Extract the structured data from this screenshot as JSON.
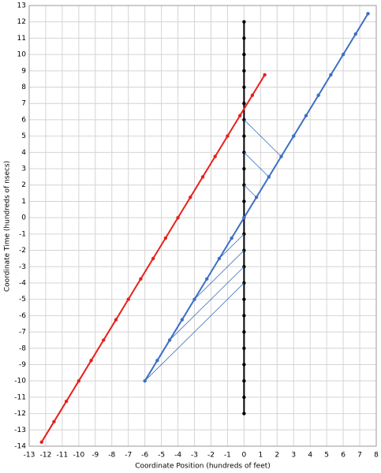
{
  "chart_data": {
    "type": "line",
    "x_label": "Coordinate Position (hundreds of feet)",
    "y_label": "Coordinate Time (hundreds of nsecs)",
    "xlim": [
      -13,
      8
    ],
    "ylim": [
      -14,
      13
    ],
    "xticks": [
      -13,
      -12,
      -11,
      -10,
      -9,
      -8,
      -7,
      -6,
      -5,
      -4,
      -3,
      -2,
      -1,
      0,
      1,
      2,
      3,
      4,
      5,
      6,
      7,
      8
    ],
    "yticks": [
      -14,
      -13,
      -12,
      -11,
      -10,
      -9,
      -8,
      -7,
      -6,
      -5,
      -4,
      -3,
      -2,
      -1,
      0,
      1,
      2,
      3,
      4,
      5,
      6,
      7,
      8,
      9,
      10,
      11,
      12,
      13
    ],
    "grid": true,
    "series": [
      {
        "color": "#000000",
        "line_width": 2,
        "markers": true,
        "x": [
          0,
          0,
          0,
          0,
          0,
          0,
          0,
          0,
          0,
          0,
          0,
          0,
          0,
          0,
          0,
          0,
          0,
          0,
          0,
          0,
          0,
          0,
          0,
          0,
          0
        ],
        "values": [
          -12,
          -11,
          -10,
          -9,
          -8,
          -7,
          -6,
          -5,
          -4,
          -3,
          -2,
          -1,
          0,
          1,
          2,
          3,
          4,
          5,
          6,
          7,
          8,
          9,
          10,
          11,
          12
        ]
      },
      {
        "color": "#3d6fc4",
        "line_width": 2,
        "markers": true,
        "x": [
          -6,
          -5.25,
          -4.5,
          -3.75,
          -3,
          -2.25,
          -1.5,
          -0.75,
          0,
          0.75,
          1.5,
          2.25,
          3,
          3.75,
          4.5,
          5.25,
          6,
          6.75,
          7.5
        ],
        "values": [
          -10,
          -8.75,
          -7.5,
          -6.25,
          -5,
          -3.75,
          -2.5,
          -1.25,
          0,
          1.25,
          2.5,
          3.75,
          5,
          6.25,
          7.5,
          8.75,
          10,
          11.25,
          12.5
        ]
      },
      {
        "color": "#e8201c",
        "line_width": 2,
        "markers": true,
        "x": [
          -12.25,
          -11.5,
          -10.75,
          -10,
          -9.25,
          -8.5,
          -7.75,
          -7,
          -6.25,
          -5.5,
          -4.75,
          -4,
          -3.25,
          -2.5,
          -1.75,
          -1,
          -0.25,
          0.5,
          1.25
        ],
        "values": [
          -13.75,
          -12.5,
          -11.25,
          -10,
          -8.75,
          -7.5,
          -6.25,
          -5,
          -3.75,
          -2.5,
          -1.25,
          0,
          1.25,
          2.5,
          3.75,
          5,
          6.25,
          7.5,
          8.75
        ]
      },
      {
        "color": "#3d6fc4",
        "line_width": 0.8,
        "markers": false,
        "x": [
          0,
          2.25
        ],
        "values": [
          6,
          3.75
        ]
      },
      {
        "color": "#3d6fc4",
        "line_width": 0.8,
        "markers": false,
        "x": [
          0,
          1.5
        ],
        "values": [
          4,
          2.5
        ]
      },
      {
        "color": "#3d6fc4",
        "line_width": 0.8,
        "markers": false,
        "x": [
          0,
          0.75
        ],
        "values": [
          2,
          1.25
        ]
      },
      {
        "color": "#3d6fc4",
        "line_width": 0.8,
        "markers": false,
        "x": [
          0,
          -1.5
        ],
        "values": [
          -1,
          -2.5
        ]
      },
      {
        "color": "#3d6fc4",
        "line_width": 0.8,
        "markers": false,
        "x": [
          0,
          -3
        ],
        "values": [
          -2,
          -5
        ]
      },
      {
        "color": "#3d6fc4",
        "line_width": 0.8,
        "markers": false,
        "x": [
          0,
          -4.5
        ],
        "values": [
          -3,
          -7.5
        ]
      },
      {
        "color": "#3d6fc4",
        "line_width": 0.8,
        "markers": false,
        "x": [
          0,
          -6
        ],
        "values": [
          -4,
          -10
        ]
      }
    ]
  }
}
